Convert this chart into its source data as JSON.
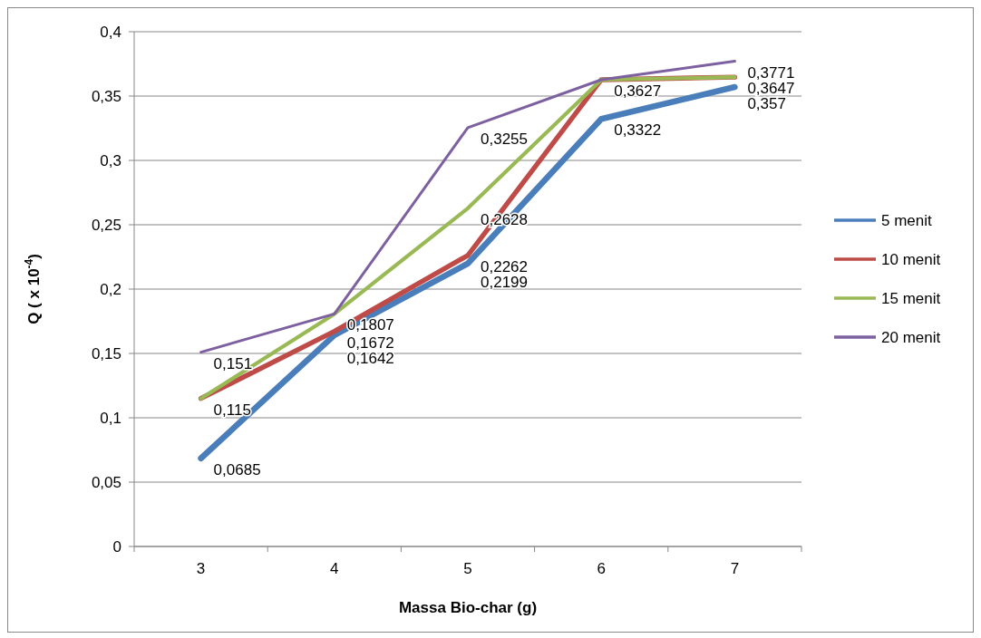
{
  "chart_data": {
    "type": "line",
    "xlabel": "Massa Bio-char (g)",
    "ylabel": "Q ( x 10$^{-4}$)",
    "categories": [
      "3",
      "4",
      "5",
      "6",
      "7"
    ],
    "series": [
      {
        "name": "5 menit",
        "color": "#4a7ebb",
        "values": [
          0.0685,
          0.1642,
          0.2199,
          0.3322,
          0.357
        ],
        "value_labels": [
          "0,0685",
          "0,1642",
          "0,2199",
          "0,3322",
          "0,357"
        ]
      },
      {
        "name": "10 menit",
        "color": "#be4b48",
        "values": [
          0.115,
          0.1672,
          0.2262,
          0.3627,
          0.3647
        ],
        "value_labels": [
          "0,115",
          "0,1672",
          "0,2262",
          null,
          null
        ]
      },
      {
        "name": "15 menit",
        "color": "#98b954",
        "values": [
          0.115,
          0.1807,
          0.2628,
          0.3627,
          0.3647
        ],
        "value_labels": [
          null,
          null,
          "0,2628",
          null,
          "0,3647"
        ]
      },
      {
        "name": "20 menit",
        "color": "#7d60a0",
        "values": [
          0.151,
          0.1807,
          0.3255,
          0.3627,
          0.3771
        ],
        "value_labels": [
          "0,151",
          "0,1807",
          "0,3255",
          "0,3627",
          "0,3771"
        ]
      }
    ],
    "ylim": [
      0,
      0.4
    ],
    "yticks": [
      0,
      {
        "value": 0.05,
        "label": "0,05"
      },
      {
        "value": 0.1,
        "label": "0,1"
      },
      {
        "value": 0.15,
        "label": "0,15"
      },
      {
        "value": 0.2,
        "label": "0,2"
      },
      {
        "value": 0.25,
        "label": "0,25"
      },
      {
        "value": 0.3,
        "label": "0,3"
      },
      {
        "value": 0.35,
        "label": "0,35"
      },
      {
        "value": 0.4,
        "label": "0,4"
      }
    ],
    "grid": "y",
    "legend": "right",
    "marker": "none",
    "line_style": "solid"
  }
}
